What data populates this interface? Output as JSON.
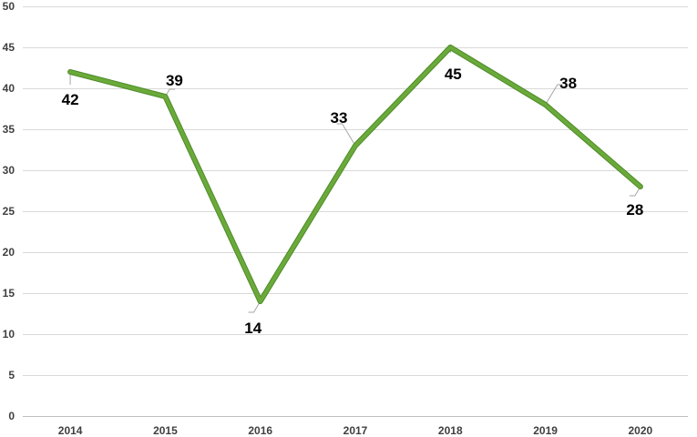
{
  "chart_data": {
    "type": "line",
    "categories": [
      "2014",
      "2015",
      "2016",
      "2017",
      "2018",
      "2019",
      "2020"
    ],
    "series": [
      {
        "values": [
          42,
          39,
          14,
          33,
          45,
          38,
          28
        ]
      }
    ],
    "ylim": [
      0,
      50
    ],
    "yticks": [
      0,
      5,
      10,
      15,
      20,
      25,
      30,
      35,
      40,
      45,
      50
    ],
    "grid": true,
    "legend": "none",
    "data_labels": true,
    "colors": {
      "line": "#6aaa3a",
      "line_edge": "#4e8a28"
    }
  }
}
